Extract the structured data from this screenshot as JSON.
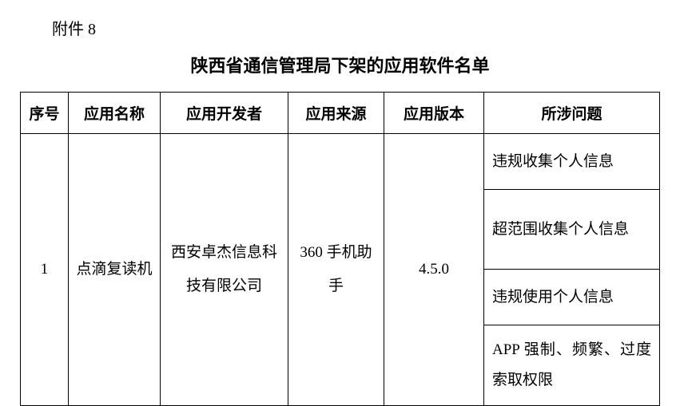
{
  "attachment_label": "附件 8",
  "title": "陕西省通信管理局下架的应用软件名单",
  "headers": {
    "seq": "序号",
    "name": "应用名称",
    "dev": "应用开发者",
    "src": "应用来源",
    "ver": "应用版本",
    "issue": "所涉问题"
  },
  "row": {
    "seq": "1",
    "name": "点滴复读机",
    "dev": "西安卓杰信息科技有限公司",
    "src": "360 手机助手",
    "ver": "4.5.0",
    "issues": [
      "违规收集个人信息",
      "超范围收集个人信息",
      "违规使用个人信息",
      "APP 强制、频繁、过度索取权限"
    ]
  },
  "colors": {
    "background": "#ffffff",
    "text": "#000000",
    "border": "#000000"
  },
  "fonts": {
    "body_size": 19,
    "title_size": 22,
    "label_size": 20
  }
}
